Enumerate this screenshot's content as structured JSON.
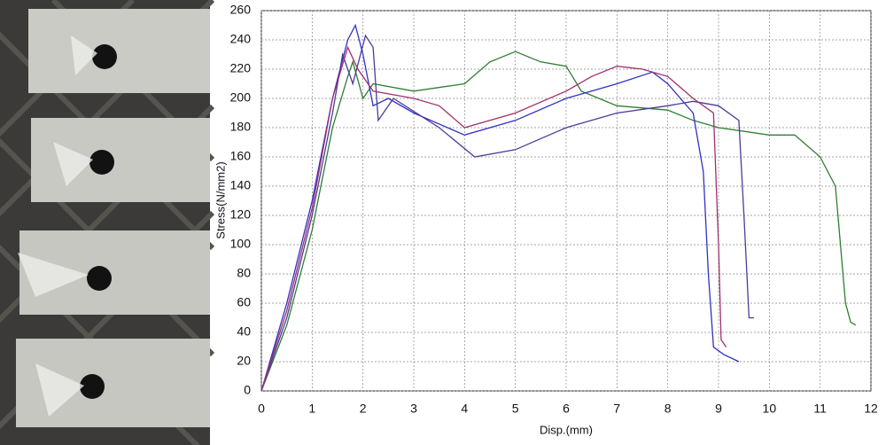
{
  "chart_data": {
    "type": "line",
    "x_label": "Disp.(mm)",
    "y_label": "Stress(N/mm2)",
    "xlim": [
      0,
      12
    ],
    "ylim": [
      0,
      260
    ],
    "xticks": [
      0,
      1,
      2,
      3,
      4,
      5,
      6,
      7,
      8,
      9,
      10,
      11,
      12
    ],
    "yticks": [
      0,
      20,
      40,
      60,
      80,
      100,
      120,
      140,
      160,
      180,
      200,
      220,
      240,
      260
    ],
    "grid": true,
    "series": [
      {
        "color": "#2e7d32",
        "x": [
          0,
          0.5,
          1,
          1.4,
          1.7,
          1.8,
          2.0,
          2.2,
          3,
          4,
          4.5,
          5,
          5.5,
          6,
          6.3,
          7,
          8,
          8.5,
          9,
          10,
          10.5,
          11,
          11.3,
          11.4,
          11.5,
          11.6,
          11.7
        ],
        "values": [
          0,
          45,
          110,
          180,
          215,
          225,
          200,
          210,
          205,
          210,
          225,
          232,
          225,
          222,
          205,
          195,
          192,
          185,
          180,
          175,
          175,
          160,
          140,
          100,
          60,
          47,
          45
        ]
      },
      {
        "color": "#3030c8",
        "x": [
          0,
          0.5,
          1,
          1.4,
          1.7,
          1.85,
          2.0,
          2.2,
          2.5,
          3,
          4,
          5,
          6,
          7,
          7.7,
          8,
          8.5,
          8.7,
          8.8,
          8.9,
          9.1,
          9.4
        ],
        "values": [
          0,
          60,
          130,
          200,
          240,
          250,
          230,
          195,
          200,
          190,
          175,
          185,
          200,
          210,
          218,
          210,
          190,
          150,
          80,
          30,
          25,
          20
        ]
      },
      {
        "color": "#4a3c9a",
        "x": [
          0,
          0.5,
          1,
          1.4,
          1.6,
          1.8,
          2.05,
          2.2,
          2.3,
          2.6,
          3.5,
          4.2,
          5,
          6,
          7,
          8,
          8.5,
          9,
          9.4,
          9.5,
          9.6,
          9.7
        ],
        "values": [
          0,
          50,
          120,
          190,
          230,
          210,
          243,
          235,
          185,
          200,
          180,
          160,
          165,
          180,
          190,
          195,
          198,
          195,
          185,
          120,
          50,
          50
        ]
      },
      {
        "color": "#a0306e",
        "x": [
          0,
          0.5,
          1,
          1.4,
          1.7,
          1.9,
          2.2,
          3,
          3.5,
          4,
          5,
          6,
          6.5,
          7,
          7.5,
          8,
          8.5,
          8.9,
          9.0,
          9.05,
          9.15
        ],
        "values": [
          0,
          55,
          125,
          200,
          235,
          220,
          205,
          200,
          195,
          180,
          190,
          205,
          215,
          222,
          220,
          215,
          200,
          190,
          100,
          35,
          30
        ]
      }
    ]
  }
}
